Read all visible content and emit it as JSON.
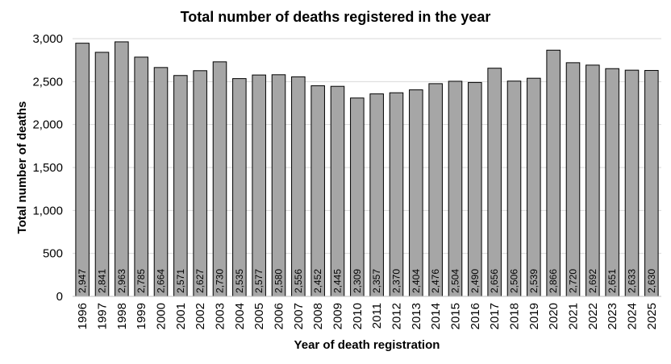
{
  "chart_data": {
    "type": "bar",
    "title": "Total number of deaths registered in the year",
    "xlabel": "Year of death registration",
    "ylabel": "Total number of deaths",
    "ylim": [
      0,
      3000
    ],
    "yticks": [
      "0",
      "500",
      "1,000",
      "1,500",
      "2,000",
      "2,500",
      "3,000"
    ],
    "grid": true,
    "bar_color": "#a6a6a6",
    "bar_stroke": "#000000",
    "categories": [
      "1996",
      "1997",
      "1998",
      "1999",
      "2000",
      "2001",
      "2002",
      "2003",
      "2004",
      "2005",
      "2006",
      "2007",
      "2008",
      "2009",
      "2010",
      "2011",
      "2012",
      "2013",
      "2014",
      "2015",
      "2016",
      "2017",
      "2018",
      "2019",
      "2020",
      "2021",
      "2022",
      "2023",
      "2024",
      "2025"
    ],
    "values": [
      2947,
      2841,
      2963,
      2785,
      2664,
      2571,
      2627,
      2730,
      2535,
      2577,
      2580,
      2556,
      2452,
      2445,
      2309,
      2357,
      2370,
      2404,
      2476,
      2504,
      2490,
      2656,
      2506,
      2539,
      2866,
      2720,
      2692,
      2651,
      2633,
      2630
    ],
    "value_labels": [
      "2,947",
      "2,841",
      "2,963",
      "2,785",
      "2,664",
      "2,571",
      "2,627",
      "2,730",
      "2,535",
      "2,577",
      "2,580",
      "2,556",
      "2,452",
      "2,445",
      "2,309",
      "2,357",
      "2,370",
      "2,404",
      "2,476",
      "2,504",
      "2,490",
      "2,656",
      "2,506",
      "2,539",
      "2,866",
      "2,720",
      "2,692",
      "2,651",
      "2,633",
      "2,630"
    ]
  }
}
